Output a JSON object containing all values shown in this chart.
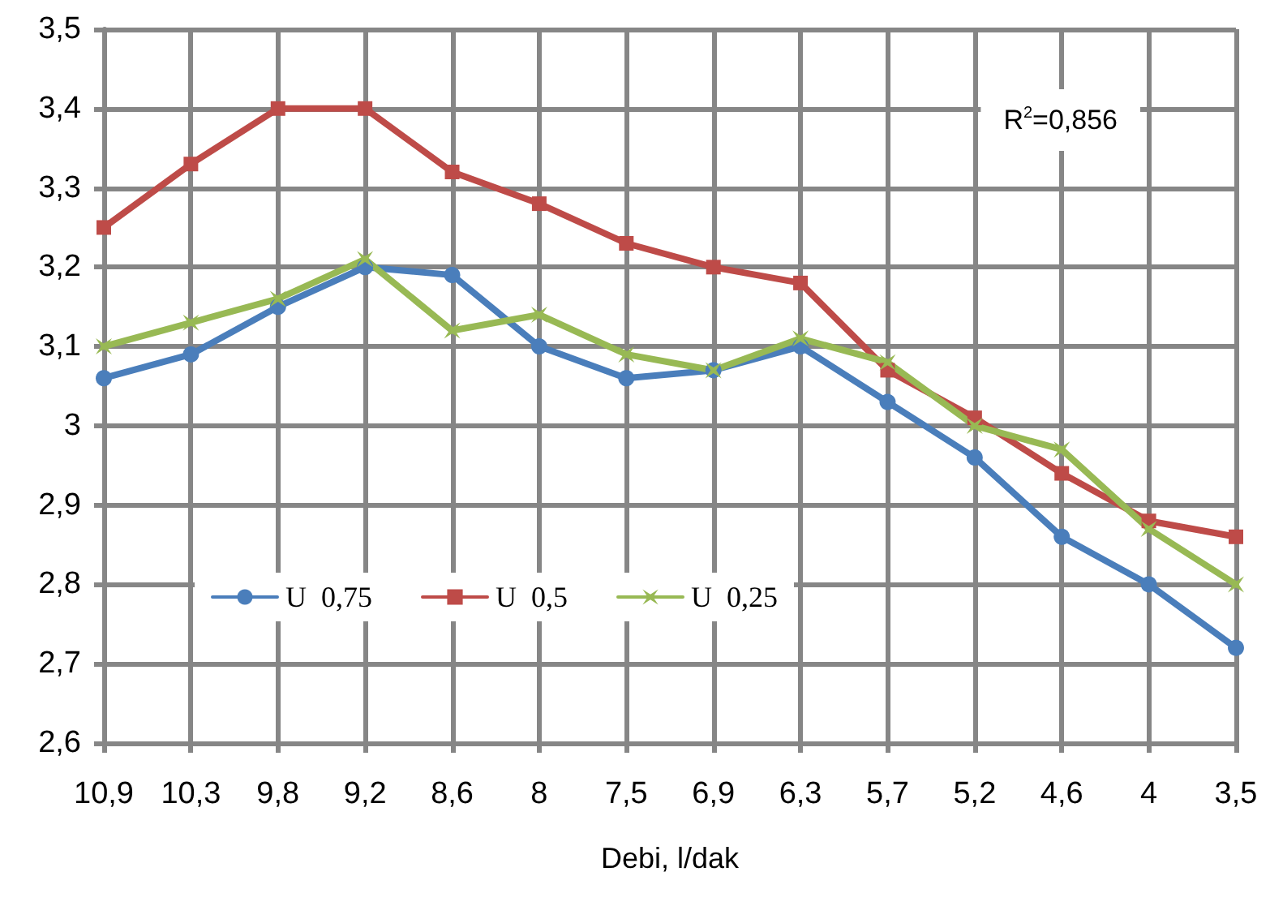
{
  "chart_data": {
    "type": "line",
    "xlabel": "Debi, l/dak",
    "categories": [
      "10,9",
      "10,3",
      "9,8",
      "9,2",
      "8,6",
      "8",
      "7,5",
      "6,9",
      "6,3",
      "5,7",
      "5,2",
      "4,6",
      "4",
      "3,5"
    ],
    "series": [
      {
        "name": "U  0,75",
        "color": "#4a7ebb",
        "marker": "circle",
        "values": [
          3.06,
          3.09,
          3.15,
          3.2,
          3.19,
          3.1,
          3.06,
          3.07,
          3.1,
          3.03,
          2.96,
          2.86,
          2.8,
          2.72
        ]
      },
      {
        "name": "U  0,5",
        "color": "#be4b48",
        "marker": "square",
        "values": [
          3.25,
          3.33,
          3.4,
          3.4,
          3.32,
          3.28,
          3.23,
          3.2,
          3.18,
          3.07,
          3.01,
          2.94,
          2.88,
          2.86
        ]
      },
      {
        "name": "U  0,25",
        "color": "#98b954",
        "marker": "cross",
        "values": [
          3.1,
          3.13,
          3.16,
          3.21,
          3.12,
          3.14,
          3.09,
          3.07,
          3.11,
          3.08,
          3.0,
          2.97,
          2.87,
          2.8
        ]
      }
    ],
    "ylim": [
      2.6,
      3.5
    ],
    "yticks": [
      {
        "value": 2.6,
        "label": "2,6"
      },
      {
        "value": 2.7,
        "label": "2,7"
      },
      {
        "value": 2.8,
        "label": "2,8"
      },
      {
        "value": 2.9,
        "label": "2,9"
      },
      {
        "value": 3,
        "label": "3"
      },
      {
        "value": 3.1,
        "label": "3,1"
      },
      {
        "value": 3.2,
        "label": "3,2"
      },
      {
        "value": 3.3,
        "label": "3,3"
      },
      {
        "value": 3.4,
        "label": "3,4"
      },
      {
        "value": 3.5,
        "label": "3,5"
      }
    ],
    "grid": true,
    "legend": "bottom left",
    "line_style": "solid",
    "annotations": [
      "R$^{2}$=0,856"
    ]
  }
}
